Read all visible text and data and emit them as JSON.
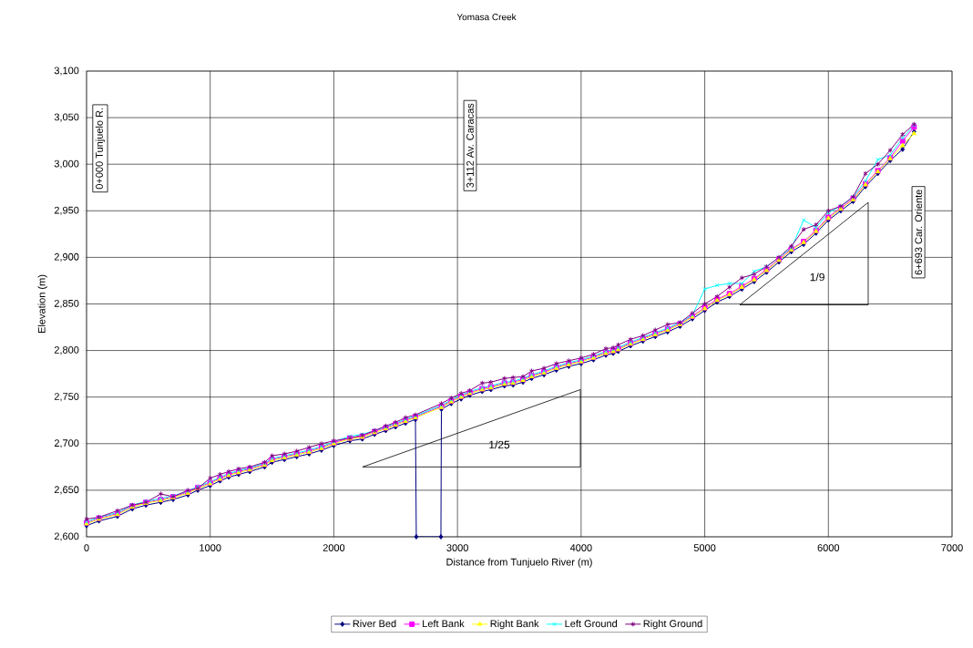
{
  "chart_data": {
    "type": "line",
    "title": "Yomasa Creek",
    "xlabel": "Distance from Tunjuelo River (m)",
    "ylabel": "Elevation (m)",
    "xlim": [
      0,
      7000
    ],
    "xticks": [
      0,
      1000,
      2000,
      3000,
      4000,
      5000,
      6000,
      7000
    ],
    "ylim": [
      2600,
      3100
    ],
    "yticks": [
      {
        "value": 2600,
        "label": "2,600"
      },
      {
        "value": 2650,
        "label": "2,650"
      },
      {
        "value": 2700,
        "label": "2,700"
      },
      {
        "value": 2750,
        "label": "2,750"
      },
      {
        "value": 2800,
        "label": "2,800"
      },
      {
        "value": 2850,
        "label": "2,850"
      },
      {
        "value": 2900,
        "label": "2,900"
      },
      {
        "value": 2950,
        "label": "2,950"
      },
      {
        "value": 3000,
        "label": "3,000"
      },
      {
        "value": 3050,
        "label": "3,050"
      },
      {
        "value": 3100,
        "label": "3,100"
      }
    ],
    "grid": true,
    "legend": "bottom",
    "line_style": "solid",
    "x": [
      0,
      100,
      250,
      370,
      480,
      600,
      700,
      820,
      900,
      1000,
      1080,
      1150,
      1230,
      1320,
      1440,
      1500,
      1600,
      1700,
      1800,
      1900,
      2000,
      2130,
      2230,
      2330,
      2420,
      2500,
      2580,
      2660,
      2870,
      2950,
      3030,
      3100,
      3200,
      3270,
      3380,
      3450,
      3530,
      3600,
      3700,
      3800,
      3900,
      4000,
      4100,
      4200,
      4260,
      4300,
      4400,
      4500,
      4600,
      4700,
      4800,
      4900,
      5000,
      5100,
      5200,
      5300,
      5400,
      5500,
      5600,
      5700,
      5800,
      5900,
      6000,
      6100,
      6200,
      6300,
      6400,
      6500,
      6600,
      6693
    ],
    "series": [
      {
        "name": "River Bed",
        "color": "#000080",
        "marker": "diamond",
        "x": [
          0,
          100,
          250,
          370,
          480,
          600,
          700,
          820,
          900,
          1000,
          1080,
          1150,
          1230,
          1320,
          1440,
          1500,
          1600,
          1700,
          1800,
          1900,
          2000,
          2130,
          2230,
          2330,
          2420,
          2500,
          2580,
          2660,
          2667,
          2866,
          2870,
          2950,
          3030,
          3100,
          3200,
          3270,
          3380,
          3450,
          3530,
          3600,
          3700,
          3800,
          3900,
          4000,
          4100,
          4200,
          4260,
          4300,
          4400,
          4500,
          4600,
          4700,
          4800,
          4900,
          5000,
          5100,
          5200,
          5300,
          5400,
          5500,
          5600,
          5700,
          5800,
          5900,
          6000,
          6100,
          6200,
          6300,
          6400,
          6500,
          6600,
          6693
        ],
        "values": [
          2612,
          2617,
          2622,
          2630,
          2634,
          2637,
          2640,
          2645,
          2650,
          2655,
          2660,
          2664,
          2667,
          2670,
          2675,
          2680,
          2683,
          2686,
          2689,
          2693,
          2698,
          2703,
          2705,
          2710,
          2714,
          2718,
          2722,
          2726,
          2600,
          2600,
          2737,
          2743,
          2748,
          2752,
          2756,
          2758,
          2762,
          2763,
          2766,
          2770,
          2774,
          2779,
          2783,
          2786,
          2790,
          2795,
          2797,
          2799,
          2805,
          2810,
          2815,
          2820,
          2826,
          2834,
          2843,
          2852,
          2858,
          2866,
          2874,
          2884,
          2895,
          2906,
          2914,
          2926,
          2940,
          2950,
          2960,
          2976,
          2990,
          3004,
          3016,
          3035
        ]
      },
      {
        "name": "Left Bank",
        "color": "#ff00ff",
        "marker": "square",
        "values": [
          2615,
          2620,
          2625,
          2633,
          2637,
          2640,
          2643,
          2648,
          2653,
          2658,
          2663,
          2667,
          2670,
          2673,
          2678,
          2683,
          2686,
          2689,
          2692,
          2696,
          2701,
          2706,
          2708,
          2713,
          2717,
          2721,
          2725,
          2729,
          2740,
          2746,
          2751,
          2755,
          2759,
          2761,
          2765,
          2766,
          2769,
          2773,
          2777,
          2782,
          2786,
          2789,
          2793,
          2798,
          2800,
          2802,
          2808,
          2813,
          2818,
          2823,
          2829,
          2837,
          2846,
          2855,
          2861,
          2869,
          2877,
          2887,
          2898,
          2909,
          2917,
          2929,
          2943,
          2953,
          2963,
          2979,
          2993,
          3007,
          3025,
          3040
        ]
      },
      {
        "name": "Right Bank",
        "color": "#ffff00",
        "marker": "triangle",
        "values": [
          2614,
          2619,
          2624,
          2632,
          2636,
          2639,
          2642,
          2647,
          2652,
          2657,
          2662,
          2666,
          2669,
          2672,
          2677,
          2682,
          2685,
          2688,
          2691,
          2695,
          2700,
          2705,
          2707,
          2712,
          2716,
          2720,
          2724,
          2728,
          2739,
          2745,
          2750,
          2754,
          2758,
          2760,
          2764,
          2765,
          2768,
          2772,
          2776,
          2781,
          2785,
          2788,
          2792,
          2797,
          2799,
          2801,
          2807,
          2812,
          2817,
          2822,
          2828,
          2836,
          2845,
          2854,
          2860,
          2868,
          2876,
          2886,
          2897,
          2908,
          2916,
          2928,
          2942,
          2952,
          2962,
          2978,
          2992,
          3006,
          3020,
          3033
        ]
      },
      {
        "name": "Left Ground",
        "color": "#00ffff",
        "marker": "cross",
        "values": [
          2616,
          2621,
          2626,
          2634,
          2638,
          2641,
          2644,
          2649,
          2654,
          2659,
          2664,
          2668,
          2671,
          2674,
          2679,
          2684,
          2687,
          2690,
          2693,
          2697,
          2702,
          2708,
          2710,
          2714,
          2718,
          2722,
          2726,
          2730,
          2741,
          2747,
          2752,
          2756,
          2760,
          2762,
          2766,
          2767,
          2770,
          2774,
          2778,
          2783,
          2787,
          2790,
          2794,
          2799,
          2801,
          2803,
          2809,
          2814,
          2819,
          2824,
          2830,
          2838,
          2866,
          2870,
          2872,
          2872,
          2885,
          2890,
          2900,
          2910,
          2940,
          2932,
          2948,
          2955,
          2965,
          2982,
          3005,
          3010,
          3028,
          3042
        ]
      },
      {
        "name": "Right Ground",
        "color": "#800080",
        "marker": "cross",
        "values": [
          2619,
          2621,
          2628,
          2634,
          2637,
          2646,
          2643,
          2650,
          2652,
          2663,
          2667,
          2670,
          2673,
          2675,
          2680,
          2687,
          2689,
          2692,
          2696,
          2700,
          2703,
          2706,
          2709,
          2714,
          2719,
          2723,
          2728,
          2731,
          2743,
          2749,
          2754,
          2757,
          2765,
          2766,
          2770,
          2771,
          2772,
          2778,
          2781,
          2786,
          2789,
          2792,
          2796,
          2802,
          2803,
          2806,
          2812,
          2816,
          2822,
          2828,
          2830,
          2840,
          2850,
          2858,
          2868,
          2878,
          2882,
          2890,
          2900,
          2912,
          2930,
          2935,
          2950,
          2955,
          2965,
          2990,
          3000,
          3015,
          3032,
          3043
        ]
      }
    ],
    "annotations": [
      "0+000 Tunjuelo R.",
      "3+112 Av. Caracas",
      "6+693 Car. Oriente",
      "1/25",
      "1/9"
    ]
  }
}
